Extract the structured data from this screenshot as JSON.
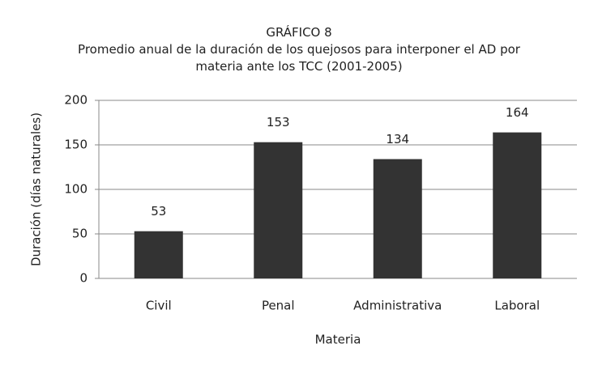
{
  "chart_data": {
    "type": "bar",
    "title": "GRÁFICO 8",
    "subtitle": "Promedio anual de la duración de los quejosos para interponer el AD por materia ante los TCC (2001-2005)",
    "x_label": "Materia",
    "y_label": "Duración (días naturales)",
    "categories": [
      "Civil",
      "Penal",
      "Administrativa",
      "Laboral"
    ],
    "values": [
      53,
      153,
      134,
      164
    ],
    "color": "#333333",
    "ylim": [
      0,
      200
    ],
    "yticks": [
      0,
      50,
      100,
      150,
      200
    ],
    "grid": true
  }
}
